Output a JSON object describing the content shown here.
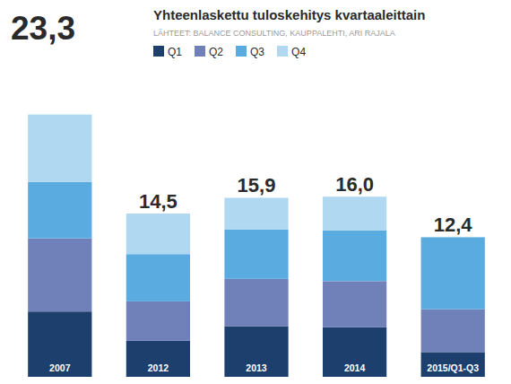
{
  "chart_data": {
    "type": "bar",
    "stacked": true,
    "title": "Yhteenlaskettu tuloskehitys kvartaaleittain",
    "subtitle": "LÄHTEET: BALANCE CONSULTING, KAUPPALEHTI, ARI RAJALA",
    "categories": [
      "2007",
      "2012",
      "2013",
      "2014",
      "2015/Q1-Q3"
    ],
    "series": [
      {
        "name": "Q1",
        "color": "#1c3f6e",
        "values": [
          5.8,
          3.2,
          4.5,
          4.4,
          2.2
        ]
      },
      {
        "name": "Q2",
        "color": "#7080b8",
        "values": [
          6.5,
          3.5,
          4.2,
          4.1,
          3.8
        ]
      },
      {
        "name": "Q3",
        "color": "#5aace0",
        "values": [
          5.0,
          4.2,
          4.4,
          4.5,
          6.4
        ]
      },
      {
        "name": "Q4",
        "color": "#b0d8f0",
        "values": [
          6.0,
          3.6,
          2.8,
          3.0,
          0.0
        ]
      }
    ],
    "totals": [
      23.3,
      14.5,
      15.9,
      16.0,
      12.4
    ],
    "total_labels": [
      "23,3",
      "14,5",
      "15,9",
      "16,0",
      "12,4"
    ],
    "ylim": [
      0,
      25.5
    ],
    "grid": false,
    "legend": "upper left",
    "tick_labels": false
  }
}
